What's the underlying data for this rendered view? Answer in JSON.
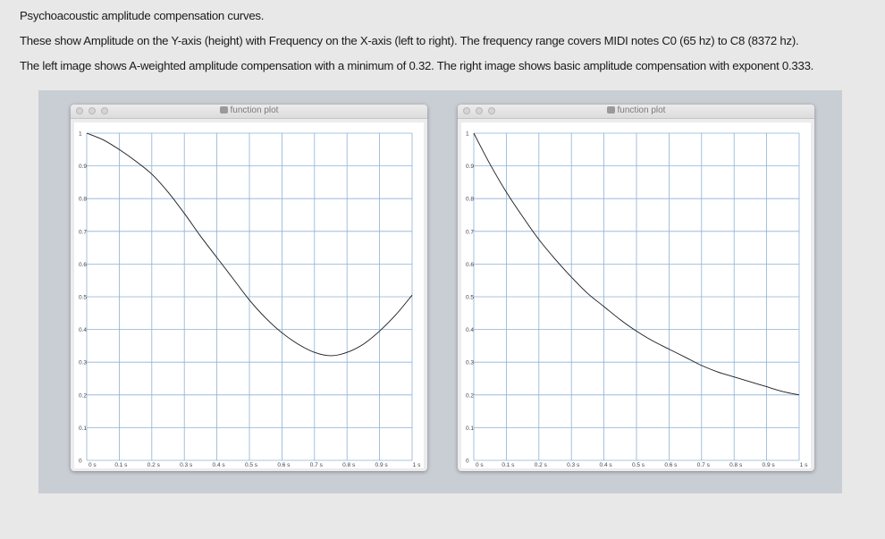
{
  "text": {
    "line1": "Psychoacoustic amplitude compensation curves.",
    "line2": "These  show Amplitude on the Y-axis (height) with Frequency on the X-axis (left to right).  The frequency range covers MIDI notes C0 (65 hz) to C8 (8372 hz).",
    "line3": "The left image shows A-weighted amplitude compensation with a minimum of 0.32.    The right image shows basic amplitude compensation with exponent  0.333."
  },
  "windows": [
    {
      "title": "function plot"
    },
    {
      "title": "function plot"
    }
  ],
  "colors": {
    "grid": "#8fb0d6",
    "curve": "#1a1a1a",
    "plot_background": "#ffffff"
  },
  "chart_data": [
    {
      "type": "line",
      "x_tick_labels": [
        "0 s",
        "0.1 s",
        "0.2 s",
        "0.3 s",
        "0.4 s",
        "0.5 s",
        "0.6 s",
        "0.7 s",
        "0.8 s",
        "0.9 s",
        "1 s"
      ],
      "y_tick_labels": [
        "0",
        "0.1",
        "0.2",
        "0.3",
        "0.4",
        "0.5",
        "0.6",
        "0.7",
        "0.8",
        "0.9",
        "1"
      ],
      "xlim": [
        0,
        1
      ],
      "ylim": [
        0,
        1
      ],
      "grid": true,
      "series": [
        {
          "x": [
            0,
            0.05,
            0.1,
            0.15,
            0.2,
            0.25,
            0.3,
            0.35,
            0.4,
            0.45,
            0.5,
            0.55,
            0.6,
            0.65,
            0.7,
            0.75,
            0.8,
            0.85,
            0.9,
            0.95,
            1.0
          ],
          "y": [
            1.0,
            0.98,
            0.95,
            0.915,
            0.875,
            0.82,
            0.755,
            0.685,
            0.62,
            0.555,
            0.49,
            0.435,
            0.39,
            0.355,
            0.33,
            0.32,
            0.33,
            0.355,
            0.395,
            0.445,
            0.505
          ]
        }
      ]
    },
    {
      "type": "line",
      "x_tick_labels": [
        "0 s",
        "0.1 s",
        "0.2 s",
        "0.3 s",
        "0.4 s",
        "0.5 s",
        "0.6 s",
        "0.7 s",
        "0.8 s",
        "0.9 s",
        "1 s"
      ],
      "y_tick_labels": [
        "0",
        "0.1",
        "0.2",
        "0.3",
        "0.4",
        "0.5",
        "0.6",
        "0.7",
        "0.8",
        "0.9",
        "1"
      ],
      "xlim": [
        0,
        1
      ],
      "ylim": [
        0,
        1
      ],
      "grid": true,
      "series": [
        {
          "x": [
            0,
            0.05,
            0.1,
            0.15,
            0.2,
            0.25,
            0.3,
            0.35,
            0.4,
            0.45,
            0.5,
            0.55,
            0.6,
            0.65,
            0.7,
            0.75,
            0.8,
            0.85,
            0.9,
            0.95,
            1.0
          ],
          "y": [
            1.0,
            0.905,
            0.82,
            0.745,
            0.675,
            0.615,
            0.56,
            0.51,
            0.47,
            0.43,
            0.395,
            0.365,
            0.34,
            0.315,
            0.29,
            0.27,
            0.255,
            0.24,
            0.225,
            0.21,
            0.2
          ]
        }
      ]
    }
  ]
}
